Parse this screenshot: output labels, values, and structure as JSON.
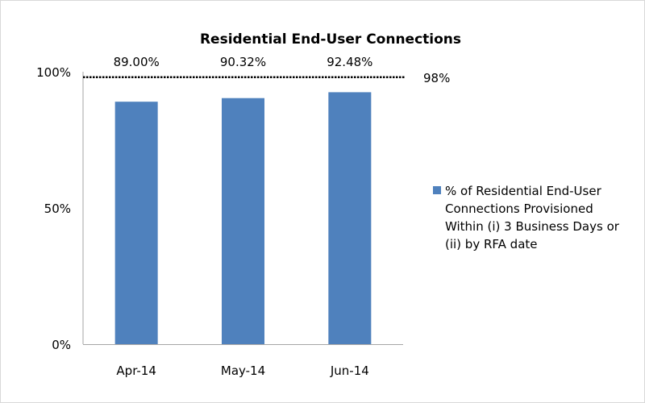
{
  "chart_data": {
    "type": "bar",
    "title": "Residential End-User Connections",
    "categories": [
      "Apr-14",
      "May-14",
      "Jun-14"
    ],
    "series": [
      {
        "name": "% of Residential End-User Connections Provisioned Within (i) 3 Business Days or (ii) by RFA date",
        "values": [
          89.0,
          90.32,
          92.48
        ],
        "data_labels": [
          "89.00%",
          "90.32%",
          "92.48%"
        ],
        "color": "#4f81bd"
      }
    ],
    "target_line": {
      "value": 98,
      "label": "98%",
      "style": "dotted"
    },
    "ylim": [
      0,
      100
    ],
    "yticks": [
      0,
      50,
      100
    ],
    "ytick_labels": [
      "0%",
      "50%",
      "100%"
    ],
    "xlabel": "",
    "ylabel": "",
    "grid": false,
    "legend_position": "right"
  }
}
